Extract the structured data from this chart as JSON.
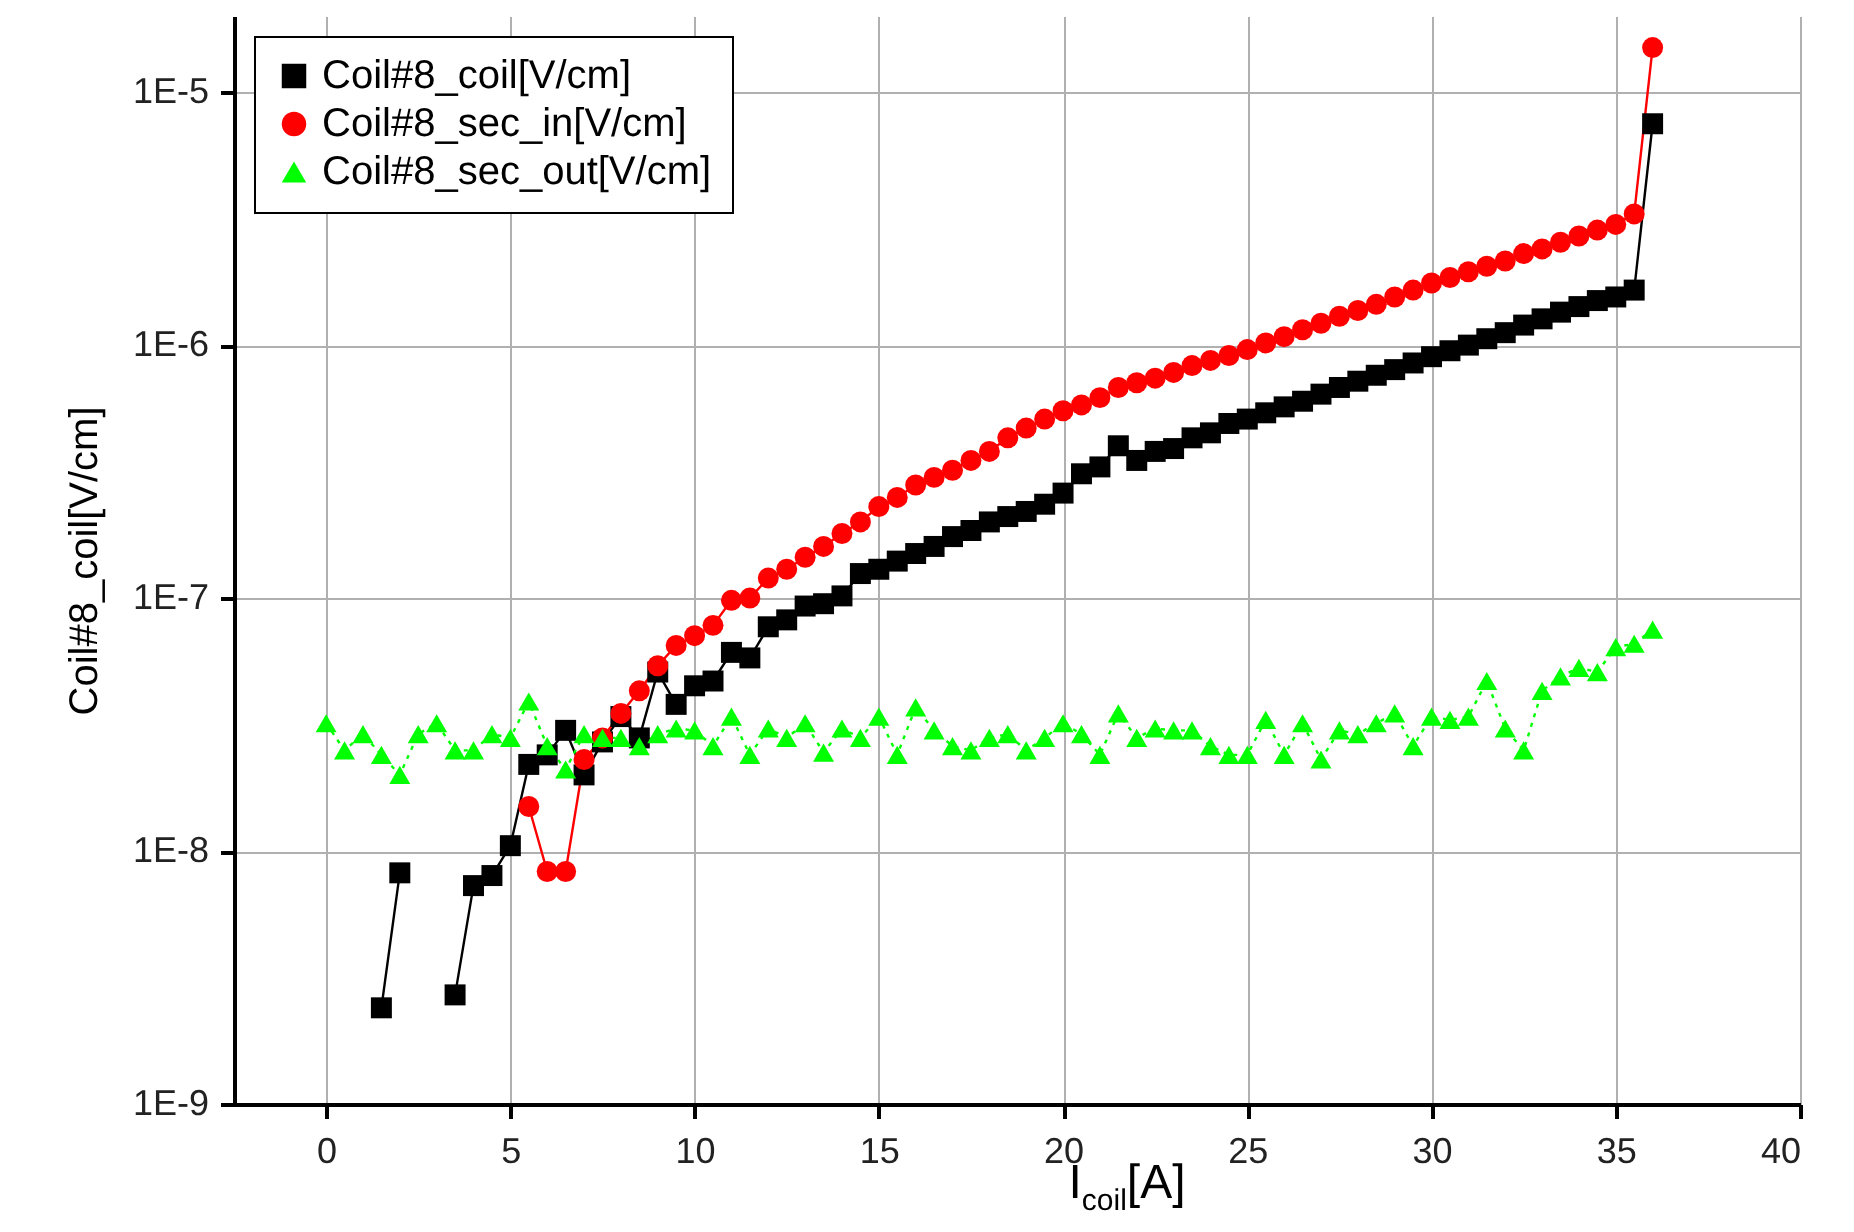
{
  "chart_data": {
    "type": "line",
    "xlabel": "I$_{coil}$[A]",
    "ylabel": "Coil#8_coil[V/cm]",
    "log": "y",
    "grid": true,
    "legend": "top left",
    "xlim": [
      -2.5,
      40
    ],
    "xticks": [
      0,
      5,
      10,
      15,
      20,
      25,
      30,
      35,
      40
    ],
    "ylim": [
      1e-09,
      2e-05
    ],
    "yticks": [
      {
        "value": 1e-09,
        "label": "1E-9"
      },
      {
        "value": 1e-08,
        "label": "1E-8"
      },
      {
        "value": 1e-07,
        "label": "1E-7"
      },
      {
        "value": 1e-06,
        "label": "1E-6"
      },
      {
        "value": 1e-05,
        "label": "1E-5"
      }
    ],
    "series": [
      {
        "name": "Coil#8_coil[V/cm]",
        "color": "#000000",
        "marker": "square",
        "x": [
          1.5,
          2,
          2.5,
          3,
          3.5,
          4,
          4.5,
          5,
          5.5,
          6,
          6.5,
          7,
          7.5,
          8,
          8.5,
          9,
          9.5,
          10,
          10.5,
          11,
          11.5,
          12,
          12.5,
          13,
          13.5,
          14,
          14.5,
          15,
          15.5,
          16,
          16.5,
          17,
          17.5,
          18,
          18.5,
          19,
          19.5,
          20,
          20.5,
          21,
          21.5,
          22,
          22.5,
          23,
          23.5,
          24,
          24.5,
          25,
          25.5,
          26,
          26.5,
          27,
          27.5,
          28,
          28.5,
          29,
          29.5,
          30,
          30.5,
          31,
          31.5,
          32,
          32.5,
          33,
          33.5,
          34,
          34.5,
          35,
          35.5,
          36
        ],
        "values": [
          2.4e-09,
          8.2e-09,
          null,
          null,
          2.7e-09,
          7.3e-09,
          8e-09,
          1.05e-08,
          2.2e-08,
          2.4e-08,
          3e-08,
          2e-08,
          2.7e-08,
          3.4e-08,
          2.8e-08,
          5.1e-08,
          3.8e-08,
          4.5e-08,
          4.7e-08,
          6.1e-08,
          5.8e-08,
          7.7e-08,
          8.2e-08,
          9.3e-08,
          9.5e-08,
          1.02e-07,
          1.25e-07,
          1.3e-07,
          1.4e-07,
          1.5e-07,
          1.6e-07,
          1.75e-07,
          1.85e-07,
          2e-07,
          2.1e-07,
          2.2e-07,
          2.35e-07,
          2.6e-07,
          3.1e-07,
          3.3e-07,
          4e-07,
          3.5e-07,
          3.8e-07,
          3.9e-07,
          4.3e-07,
          4.5e-07,
          4.9e-07,
          5.1e-07,
          5.4e-07,
          5.7e-07,
          6e-07,
          6.4e-07,
          6.8e-07,
          7.2e-07,
          7.6e-07,
          8e-07,
          8.5e-07,
          9e-07,
          9.5e-07,
          1e-06,
          1.06e-06,
          1.12e-06,
          1.2e-06,
          1.27e-06,
          1.35e-06,
          1.42e-06,
          1.5e-06,
          1.55e-06,
          1.65e-06,
          7.5e-06
        ]
      },
      {
        "name": "Coil#8_sec_in[V/cm]",
        "color": "#ff0000",
        "marker": "circle",
        "x": [
          5.5,
          6,
          6.5,
          7,
          7.5,
          8,
          8.5,
          9,
          9.5,
          10,
          10.5,
          11,
          11.5,
          12,
          12.5,
          13,
          13.5,
          14,
          14.5,
          15,
          15.5,
          16,
          16.5,
          17,
          17.5,
          18,
          18.5,
          19,
          19.5,
          20,
          20.5,
          21,
          21.5,
          22,
          22.5,
          23,
          23.5,
          24,
          24.5,
          25,
          25.5,
          26,
          26.5,
          27,
          27.5,
          28,
          28.5,
          29,
          29.5,
          30,
          30.5,
          31,
          31.5,
          32,
          32.5,
          33,
          33.5,
          34,
          34.5,
          35,
          35.5,
          36
        ],
        "values": [
          1.5e-08,
          8.3e-09,
          8.3e-09,
          2.3e-08,
          2.8e-08,
          3.5e-08,
          4.3e-08,
          5.4e-08,
          6.5e-08,
          7.1e-08,
          7.8e-08,
          9.8e-08,
          1e-07,
          1.2e-07,
          1.3e-07,
          1.45e-07,
          1.6e-07,
          1.8e-07,
          2e-07,
          2.3e-07,
          2.5e-07,
          2.8e-07,
          3e-07,
          3.2e-07,
          3.5e-07,
          3.8e-07,
          4.3e-07,
          4.7e-07,
          5.1e-07,
          5.5e-07,
          5.8e-07,
          6.2e-07,
          6.8e-07,
          7.1e-07,
          7.4e-07,
          7.8e-07,
          8.3e-07,
          8.7e-07,
          9.1e-07,
          9.6e-07,
          1.02e-06,
          1.08e-06,
          1.15e-06,
          1.22e-06,
          1.3e-06,
          1.37e-06,
          1.45e-06,
          1.55e-06,
          1.65e-06,
          1.76e-06,
          1.85e-06,
          1.95e-06,
          2.05e-06,
          2.15e-06,
          2.3e-06,
          2.4e-06,
          2.55e-06,
          2.7e-06,
          2.85e-06,
          3e-06,
          3.3e-06,
          1.5e-05
        ]
      },
      {
        "name": "Coil#8_sec_out[V/cm]",
        "color": "#00ff00",
        "marker": "triangle",
        "line_style": "dotted",
        "x": [
          0,
          0.5,
          1,
          1.5,
          2,
          2.5,
          3,
          3.5,
          4,
          4.5,
          5,
          5.5,
          6,
          6.5,
          7,
          7.5,
          8,
          8.5,
          9,
          9.5,
          10,
          10.5,
          11,
          11.5,
          12,
          12.5,
          13,
          13.5,
          14,
          14.5,
          15,
          15.5,
          16,
          16.5,
          17,
          17.5,
          18,
          18.5,
          19,
          19.5,
          20,
          20.5,
          21,
          21.5,
          22,
          22.5,
          23,
          23.5,
          24,
          24.5,
          25,
          25.5,
          26,
          26.5,
          27,
          27.5,
          28,
          28.5,
          29,
          29.5,
          30,
          30.5,
          31,
          31.5,
          32,
          32.5,
          33,
          33.5,
          34,
          34.5,
          35,
          35.5,
          36
        ],
        "values": [
          3.2e-08,
          2.5e-08,
          2.9e-08,
          2.4e-08,
          2e-08,
          2.9e-08,
          3.2e-08,
          2.5e-08,
          2.5e-08,
          2.9e-08,
          2.8e-08,
          3.9e-08,
          2.6e-08,
          2.1e-08,
          2.9e-08,
          2.8e-08,
          2.8e-08,
          2.6e-08,
          2.9e-08,
          3.05e-08,
          3e-08,
          2.6e-08,
          3.4e-08,
          2.4e-08,
          3.05e-08,
          2.8e-08,
          3.2e-08,
          2.45e-08,
          3.05e-08,
          2.8e-08,
          3.4e-08,
          2.4e-08,
          3.7e-08,
          3e-08,
          2.6e-08,
          2.5e-08,
          2.8e-08,
          2.9e-08,
          2.5e-08,
          2.8e-08,
          3.2e-08,
          2.9e-08,
          2.4e-08,
          3.5e-08,
          2.8e-08,
          3.05e-08,
          3e-08,
          3e-08,
          2.6e-08,
          2.4e-08,
          2.4e-08,
          3.3e-08,
          2.4e-08,
          3.2e-08,
          2.3e-08,
          3e-08,
          2.9e-08,
          3.2e-08,
          3.5e-08,
          2.6e-08,
          3.4e-08,
          3.3e-08,
          3.4e-08,
          4.7e-08,
          3.05e-08,
          2.5e-08,
          4.3e-08,
          4.9e-08,
          5.3e-08,
          5.1e-08,
          6.4e-08,
          6.6e-08,
          7.5e-08
        ]
      }
    ]
  }
}
